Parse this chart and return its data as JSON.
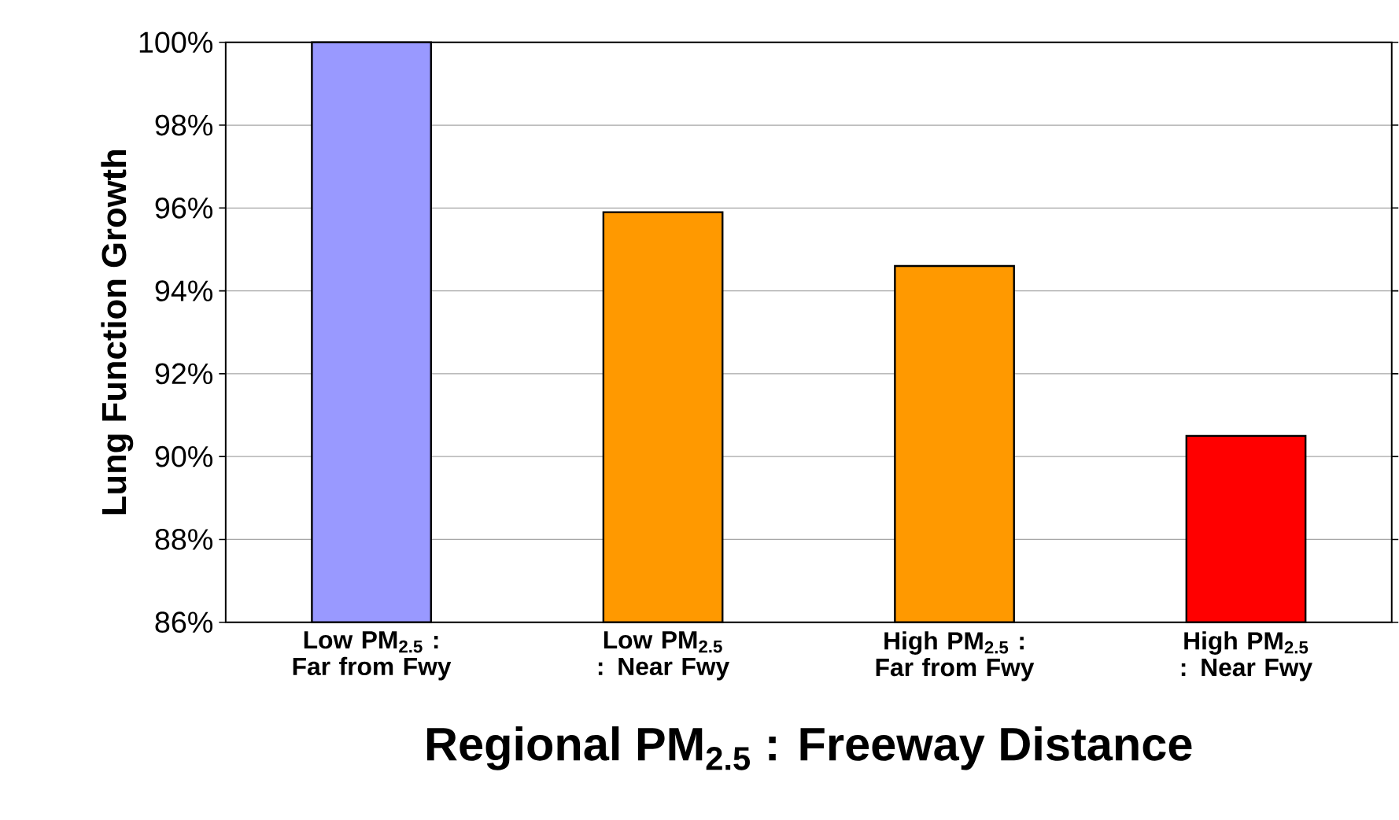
{
  "chart_data": {
    "type": "bar",
    "xlabel": "Regional PM$_{2.5}$ : Freeway Distance",
    "ylabel": "Lung Function Growth",
    "categories": [
      "Low PM$_{2.5}$ : Far from Fwy",
      "Low PM$_{2.5}$ : Near Fwy",
      "High PM$_{2.5}$ : Far from Fwy",
      "High PM$_{2.5}$ : Near Fwy"
    ],
    "values": [
      100,
      95.9,
      94.6,
      90.5
    ],
    "colors": [
      "#9999ff",
      "#ff9900",
      "#ff9900",
      "#ff0000"
    ],
    "ylim": [
      86,
      100
    ],
    "yticks": [
      {
        "value": 86,
        "label": "86%"
      },
      {
        "value": 88,
        "label": "88%"
      },
      {
        "value": 90,
        "label": "90%"
      },
      {
        "value": 92,
        "label": "92%"
      },
      {
        "value": 94,
        "label": "94%"
      },
      {
        "value": 96,
        "label": "96%"
      },
      {
        "value": 98,
        "label": "98%"
      },
      {
        "value": 100,
        "label": "100%"
      }
    ],
    "grid": "y"
  }
}
